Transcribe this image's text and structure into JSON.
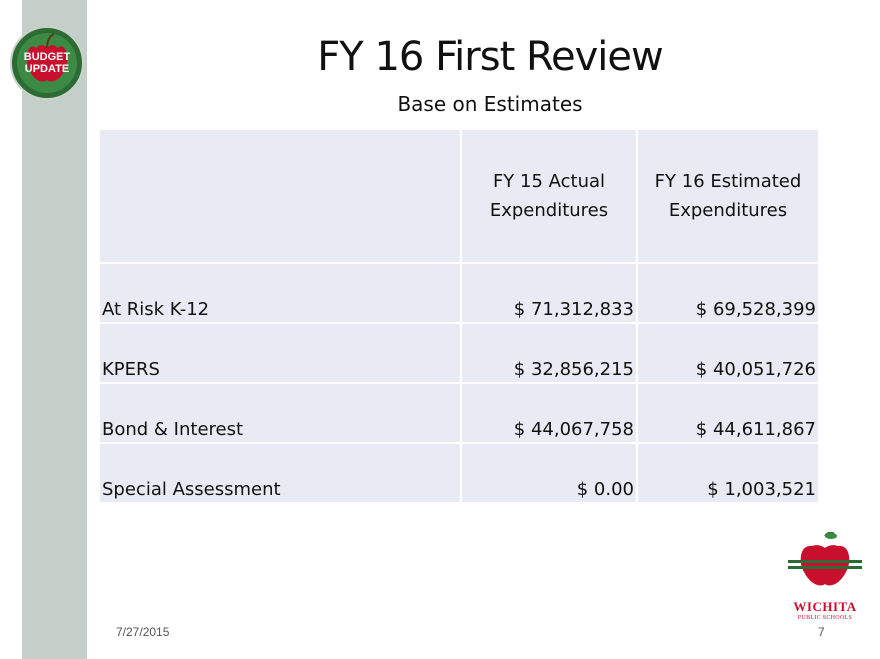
{
  "slide": {
    "title": "FY 16 First Review",
    "subtitle": "Base on Estimates",
    "date": "7/27/2015",
    "page_number": "7"
  },
  "badge": {
    "line1": "BUDGET",
    "line2": "UPDATE"
  },
  "table": {
    "headers": [
      "",
      "FY 15 Actual Expenditures",
      "FY 16 Estimated Expenditures"
    ],
    "rows": [
      [
        "At Risk K-12",
        "$ 71,312,833",
        "$ 69,528,399"
      ],
      [
        "KPERS",
        "$ 32,856,215",
        "$ 40,051,726"
      ],
      [
        "Bond & Interest",
        "$ 44,067,758",
        "$ 44,611,867"
      ],
      [
        "Special Assessment",
        "$ 0.00",
        "$ 1,003,521"
      ]
    ]
  },
  "logo": {
    "name": "WICHITA",
    "sub": "PUBLIC SCHOOLS"
  },
  "colors": {
    "sidebar": "#c5cfc9",
    "table_bg": "#e8ebf3",
    "badge_green": "#2d6b34",
    "apple_red": "#c8102e"
  }
}
